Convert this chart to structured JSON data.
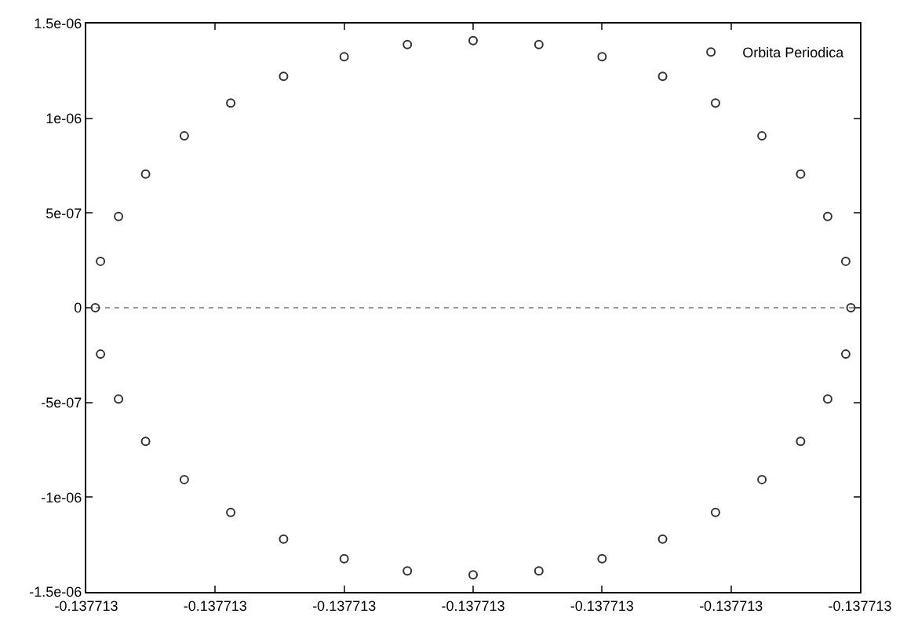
{
  "chart_data": {
    "type": "scatter",
    "legend": "top right",
    "marker": "circle",
    "grid": false,
    "xlim": [
      -0.1377133,
      -0.1377127
    ],
    "xticks": [
      {
        "value": -0.1377133,
        "label": "-0.137713"
      },
      {
        "value": -0.1377132,
        "label": "-0.137713"
      },
      {
        "value": -0.1377131,
        "label": "-0.137713"
      },
      {
        "value": -0.137713,
        "label": "-0.137713"
      },
      {
        "value": -0.1377129,
        "label": "-0.137713"
      },
      {
        "value": -0.1377128,
        "label": "-0.137713"
      },
      {
        "value": -0.1377127,
        "label": "-0.137713"
      }
    ],
    "ylim": [
      -1.5e-06,
      1.5e-06
    ],
    "yticks": [
      {
        "value": -1.5e-06,
        "label": "-1.5e-06"
      },
      {
        "value": -1e-06,
        "label": "-1e-06"
      },
      {
        "value": -5e-07,
        "label": "-5e-07"
      },
      {
        "value": 0,
        "label": "0"
      },
      {
        "value": 5e-07,
        "label": "5e-07"
      },
      {
        "value": 1e-06,
        "label": "1e-06"
      },
      {
        "value": 1.5e-06,
        "label": "1.5e-06"
      }
    ],
    "ref_lines": [
      {
        "axis": "y",
        "value": 0,
        "label": null,
        "color": "#999999",
        "line_style": "dotted"
      }
    ],
    "series": [
      {
        "name": "Orbita Periodica",
        "color": "#333333",
        "x": [
          -0.137712707,
          -0.137712711,
          -0.137712725,
          -0.137712746,
          -0.137712776,
          -0.137712812,
          -0.137712853,
          -0.1377129,
          -0.137712949,
          -0.137713,
          -0.137713051,
          -0.1377131,
          -0.137713147,
          -0.137713188,
          -0.137713224,
          -0.137713254,
          -0.137713275,
          -0.137713289,
          -0.137713293,
          -0.137713289,
          -0.137713275,
          -0.137713254,
          -0.137713224,
          -0.137713188,
          -0.137713147,
          -0.1377131,
          -0.137713051,
          -0.137713,
          -0.137712949,
          -0.1377129,
          -0.137712853,
          -0.137712812,
          -0.137712776,
          -0.137712746,
          -0.137712725,
          -0.137712711
        ],
        "values": [
          0,
          2.45e-07,
          4.82e-07,
          7.05e-07,
          9.07e-07,
          1.08e-06,
          1.221e-06,
          1.325e-06,
          1.389e-06,
          1.41e-06,
          1.389e-06,
          1.325e-06,
          1.221e-06,
          1.08e-06,
          9.07e-07,
          7.05e-07,
          4.82e-07,
          2.45e-07,
          0,
          -2.45e-07,
          -4.82e-07,
          -7.05e-07,
          -9.07e-07,
          -1.08e-06,
          -1.221e-06,
          -1.325e-06,
          -1.389e-06,
          -1.41e-06,
          -1.389e-06,
          -1.325e-06,
          -1.221e-06,
          -1.08e-06,
          -9.07e-07,
          -7.05e-07,
          -4.82e-07,
          -2.45e-07
        ]
      }
    ]
  }
}
